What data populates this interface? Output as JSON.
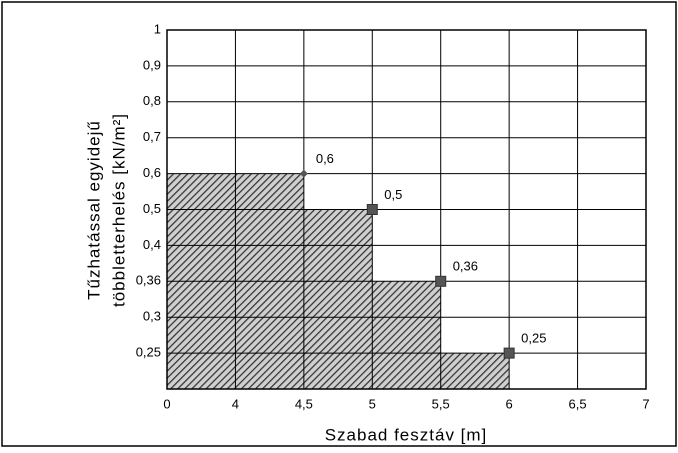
{
  "chart_data": {
    "type": "step-area",
    "xlabel": "Szabad fesztáv [m]",
    "ylabel": [
      "Tűzhatással egyidejű",
      "többletterhelés [kN/m²]"
    ],
    "x": [
      4.5,
      5,
      5.5,
      6
    ],
    "values": [
      0.6,
      0.5,
      0.36,
      0.25
    ],
    "value_labels": [
      "0,6",
      "0,5",
      "0,36",
      "0,25"
    ],
    "xticks": [
      0,
      4,
      {
        "value": 4.5,
        "label": "4,5"
      },
      5,
      {
        "value": 5.5,
        "label": "5,5"
      },
      6,
      {
        "value": 6.5,
        "label": "6,5"
      },
      7
    ],
    "yticks": [
      1,
      {
        "value": 0.9,
        "label": "0,9"
      },
      {
        "value": 0.8,
        "label": "0,8"
      },
      {
        "value": 0.7,
        "label": "0,7"
      },
      {
        "value": 0.6,
        "label": "0,6"
      },
      {
        "value": 0.5,
        "label": "0,5"
      },
      {
        "value": 0.4,
        "label": "0,4"
      },
      {
        "value": 0.36,
        "label": "0,36"
      },
      {
        "value": 0.3,
        "label": "0,3"
      },
      {
        "value": 0.25,
        "label": "0,25"
      }
    ],
    "grid": true,
    "color": "#555555"
  }
}
